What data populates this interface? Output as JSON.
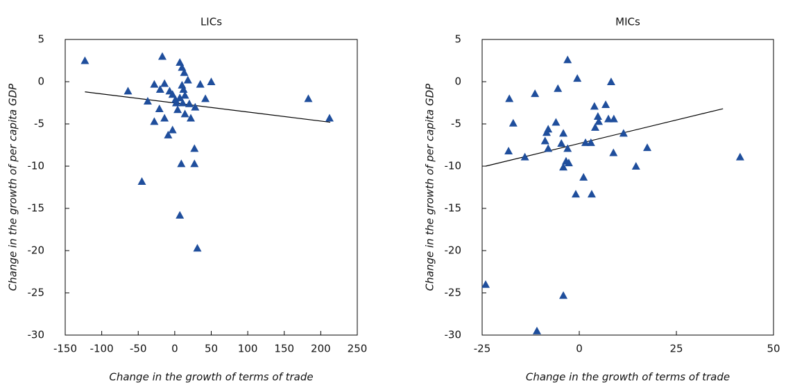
{
  "chart_data": [
    {
      "type": "scatter",
      "title": "LICs",
      "x_label": "Change in the growth of terms of trade",
      "y_label": "Change in the growth of per capita GDP",
      "xlim": [
        -150,
        250
      ],
      "xticks": [
        -150,
        -100,
        -50,
        0,
        50,
        100,
        150,
        200,
        250
      ],
      "ylim": [
        -30,
        5
      ],
      "yticks": [
        -30,
        -25,
        -20,
        -15,
        -10,
        -5,
        0,
        5
      ],
      "series": [
        {
          "color": "#1f4e9c",
          "x": [
            -123,
            -64,
            -37,
            -28,
            -17,
            -20,
            -14,
            -21,
            -28,
            -14,
            -9,
            -3,
            -7,
            -3,
            2,
            4,
            1,
            7,
            10,
            13,
            10,
            12,
            14,
            7,
            11,
            18,
            20,
            14,
            22,
            28,
            35,
            42,
            50,
            27,
            27,
            9,
            7,
            31,
            -45,
            183,
            212
          ],
          "values": [
            2.5,
            -1.1,
            -2.3,
            -0.3,
            3,
            -0.9,
            -0.2,
            -3.2,
            -4.7,
            -4.3,
            -6.3,
            -5.7,
            -1.1,
            -1.5,
            -2.5,
            -3.3,
            -2.1,
            2.3,
            1.7,
            1.1,
            -0.4,
            -0.9,
            -1.6,
            -1.9,
            -2.5,
            0.2,
            -2.6,
            -3.8,
            -4.3,
            -3,
            -0.3,
            -2,
            0,
            -7.9,
            -9.7,
            -9.7,
            -15.8,
            -19.7,
            -11.8,
            -2,
            -4.3
          ]
        }
      ],
      "trendline": {
        "color": "#000000",
        "x": [
          -123,
          213
        ],
        "values": [
          -1.2,
          -4.8
        ]
      }
    },
    {
      "type": "scatter",
      "title": "MICs",
      "x_label": "Change in the growth of terms of trade",
      "y_label": "Change in the growth of per capita GDP",
      "xlim": [
        -25,
        50
      ],
      "xticks": [
        -25,
        0,
        25,
        50
      ],
      "ylim": [
        -30,
        5
      ],
      "yticks": [
        -30,
        -25,
        -20,
        -15,
        -10,
        -5,
        0,
        5
      ],
      "series": [
        {
          "color": "#1f4e9c",
          "x": [
            -3,
            -0.5,
            8.2,
            -5.5,
            -11.4,
            -18,
            3.9,
            6.8,
            -17,
            -6,
            4.8,
            5,
            7.5,
            8.9,
            4.1,
            -8,
            -8.4,
            -4.1,
            11.4,
            -8.8,
            -4.6,
            1.6,
            3,
            -8,
            -3,
            -18.2,
            -14,
            8.8,
            17.5,
            14.6,
            41.4,
            -3.4,
            -4.1,
            -2.7,
            1.1,
            -0.9,
            3.2,
            -24.1,
            -4.1,
            -10.9
          ],
          "values": [
            2.6,
            0.4,
            0,
            -0.8,
            -1.4,
            -2,
            -2.9,
            -2.7,
            -4.9,
            -4.8,
            -4.1,
            -4.7,
            -4.4,
            -4.4,
            -5.4,
            -5.6,
            -6,
            -6.1,
            -6.1,
            -7,
            -7.3,
            -7.2,
            -7.2,
            -7.9,
            -7.9,
            -8.2,
            -8.9,
            -8.4,
            -7.8,
            -10,
            -8.9,
            -9.4,
            -10.1,
            -9.6,
            -11.3,
            -13.3,
            -13.3,
            -24,
            -25.3,
            -29.5
          ]
        }
      ],
      "trendline": {
        "color": "#000000",
        "x": [
          -24.1,
          37
        ],
        "values": [
          -10,
          -3.2
        ]
      }
    }
  ]
}
